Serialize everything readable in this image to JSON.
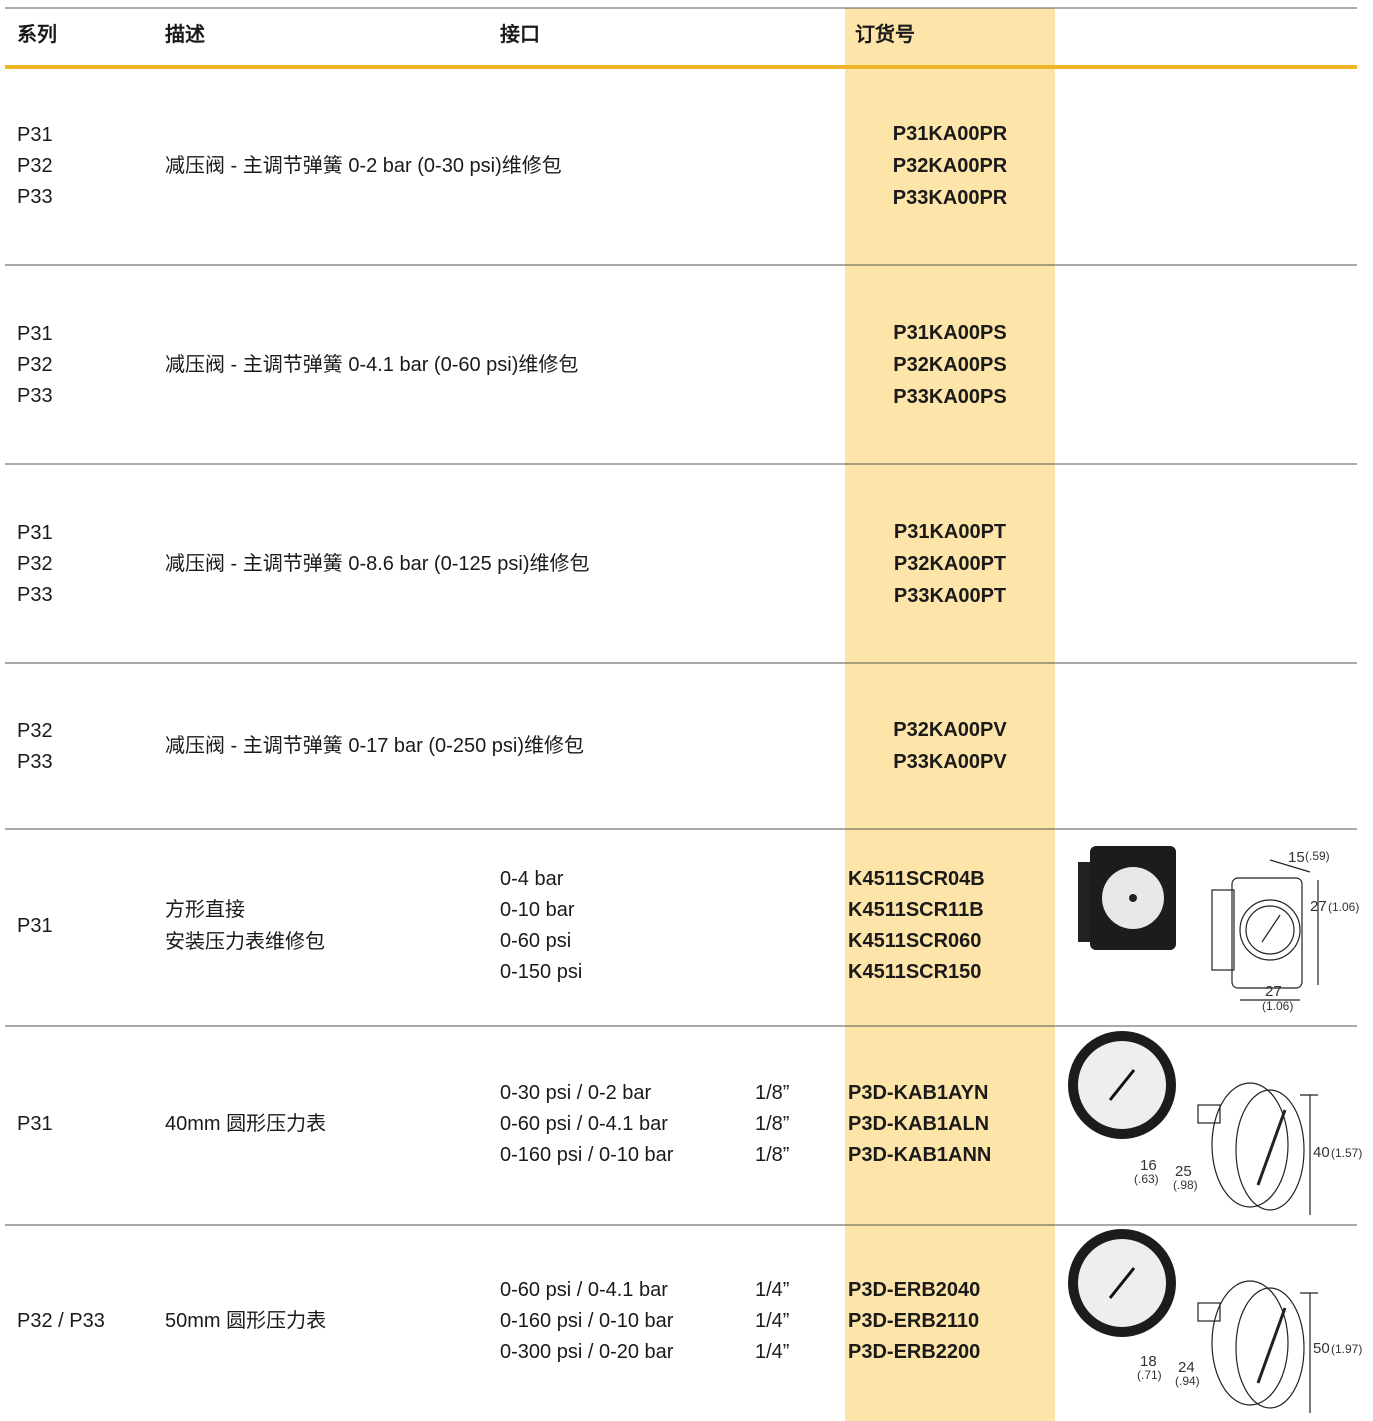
{
  "header": [
    "系列",
    "描述",
    "接口",
    "订货号"
  ],
  "rows": [
    {
      "series": [
        "P31",
        "P32",
        "P33"
      ],
      "description": [
        "减压阀 - 主调节弹簧 0-2 bar (0-30 psi)维修包"
      ],
      "order_numbers": [
        "P31KA00PR",
        "P32KA00PR",
        "P33KA00PR"
      ]
    },
    {
      "series": [
        "P31",
        "P32",
        "P33"
      ],
      "description": [
        "减压阀 - 主调节弹簧 0-4.1 bar (0-60 psi)维修包"
      ],
      "order_numbers": [
        "P31KA00PS",
        "P32KA00PS",
        "P33KA00PS"
      ]
    },
    {
      "series": [
        "P31",
        "P32",
        "P33"
      ],
      "description": [
        "减压阀 - 主调节弹簧 0-8.6 bar (0-125 psi)维修包"
      ],
      "order_numbers": [
        "P31KA00PT",
        "P32KA00PT",
        "P33KA00PT"
      ]
    },
    {
      "series": [
        "P32",
        "P33"
      ],
      "description": [
        "减压阀 - 主调节弹簧 0-17 bar (0-250 psi)维修包"
      ],
      "order_numbers": [
        "P32KA00PV",
        "P33KA00PV"
      ]
    },
    {
      "series": [
        "P31"
      ],
      "description": [
        "方形直接",
        "安装压力表维修包"
      ],
      "ports": [
        "0-4 bar",
        "0-10 bar",
        "0-60 psi",
        "0-150 psi"
      ],
      "order_numbers": [
        "K4511SCR04B",
        "K4511SCR11B",
        "K4511SCR060",
        "K4511SCR150"
      ],
      "dimensions": [
        "15",
        "(.59)",
        "27",
        "(1.06)",
        "27",
        "(1.06)"
      ]
    },
    {
      "series": [
        "P31"
      ],
      "description": [
        "40mm 圆形压力表"
      ],
      "ports": [
        "0-30 psi / 0-2 bar",
        "0-60 psi / 0-4.1 bar",
        "0-160 psi / 0-10 bar"
      ],
      "threads": [
        "1/8”",
        "1/8”",
        "1/8”"
      ],
      "order_numbers": [
        "P3D-KAB1AYN",
        "P3D-KAB1ALN",
        "P3D-KAB1ANN"
      ],
      "dimensions": [
        "16",
        "(.63)",
        "25",
        "(.98)",
        "40",
        "(1.57)"
      ]
    },
    {
      "series": [
        "P32 / P33"
      ],
      "description": [
        "50mm 圆形压力表"
      ],
      "ports": [
        "0-60 psi / 0-4.1 bar",
        "0-160 psi / 0-10 bar",
        "0-300 psi / 0-20 bar"
      ],
      "threads": [
        "1/4”",
        "1/4”",
        "1/4”"
      ],
      "order_numbers": [
        "P3D-ERB2040",
        "P3D-ERB2110",
        "P3D-ERB2200"
      ],
      "dimensions": [
        "18",
        "(.71)",
        "24",
        "(.94)",
        "50",
        "(1.97)"
      ]
    }
  ]
}
